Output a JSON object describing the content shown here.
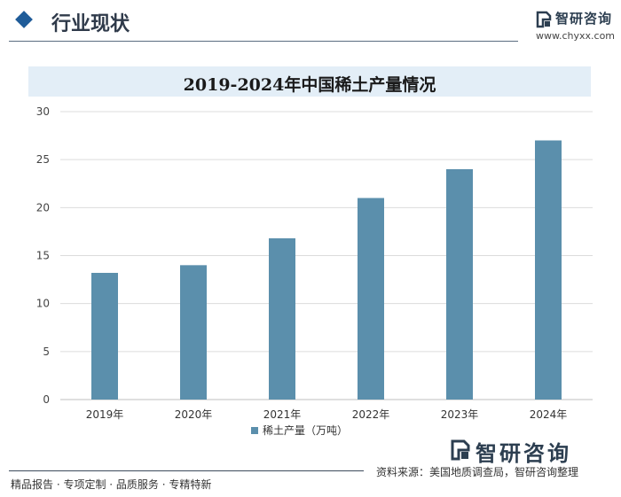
{
  "header": {
    "section_title": "行业现状",
    "logo_name": "智研咨询",
    "logo_url": "www.chyxx.com"
  },
  "colors": {
    "bar": "#5b8fac",
    "grid": "#dcdcdc",
    "accent": "#1f5c99"
  },
  "chart_data": {
    "type": "bar",
    "title": "2019-2024年中国稀土产量情况",
    "categories": [
      "2019年",
      "2020年",
      "2021年",
      "2022年",
      "2023年",
      "2024年"
    ],
    "series": [
      {
        "name": "稀土产量（万吨）",
        "values": [
          13.2,
          14.0,
          16.8,
          21.0,
          24.0,
          27.0
        ]
      }
    ],
    "ylim": [
      0,
      30
    ],
    "yticks": [
      0,
      5,
      10,
      15,
      20,
      25,
      30
    ],
    "grid": true,
    "legend": "bottom",
    "xlabel": "",
    "ylabel": ""
  },
  "footer": {
    "slogan": "精品报告 · 专项定制 · 品质服务 · 专精特新",
    "source": "资料来源：美国地质调查局，智研咨询整理",
    "big_logo_name": "智研咨询"
  }
}
